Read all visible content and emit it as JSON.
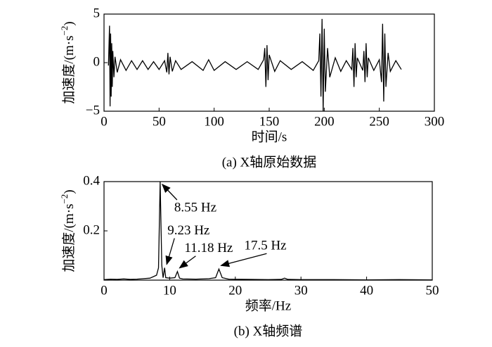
{
  "chart_data": [
    {
      "type": "line",
      "xlabel": "时间/s",
      "ylabel": {
        "text": "加速度/(m·s",
        "sup": "−2",
        "end": ")"
      },
      "caption": "(a) X轴原始数据",
      "xlim": [
        0,
        300
      ],
      "xticks": [
        0,
        50,
        100,
        150,
        200,
        250,
        300
      ],
      "ylim": [
        -5,
        5
      ],
      "yticks": [
        {
          "value": -5,
          "label": "−5"
        },
        0,
        5
      ],
      "series": [
        {
          "color": "#000000",
          "x": [
            4,
            5,
            5.5,
            6,
            6.5,
            7,
            7.5,
            8,
            9,
            10,
            12,
            15,
            20,
            25,
            30,
            35,
            40,
            45,
            50,
            55,
            57,
            58,
            59,
            60,
            62,
            65,
            70,
            80,
            90,
            95,
            100,
            110,
            120,
            130,
            140,
            145,
            146,
            147,
            148,
            149,
            150,
            155,
            160,
            170,
            180,
            190,
            195,
            196,
            197,
            198,
            199,
            200,
            201,
            203,
            205,
            210,
            215,
            220,
            225,
            226,
            227,
            228,
            229,
            230,
            235,
            236,
            237,
            238,
            239,
            240,
            245,
            250,
            252,
            253,
            254,
            255,
            256,
            258,
            260,
            265,
            270
          ],
          "values": [
            -0.3,
            3.8,
            -4.5,
            3.0,
            -3.5,
            2.0,
            -2.5,
            1.2,
            -1.5,
            0.6,
            -1.0,
            0.3,
            -0.8,
            0.2,
            -0.7,
            0.2,
            -0.7,
            0.1,
            -0.7,
            0.2,
            -1.0,
            1.0,
            -1.2,
            0.6,
            -0.9,
            0.2,
            -0.7,
            0.1,
            -0.8,
            0.3,
            -0.8,
            0.1,
            -0.7,
            0.1,
            -0.7,
            0.3,
            1.5,
            -2.5,
            1.8,
            -1.8,
            0.8,
            -0.9,
            0.2,
            -0.7,
            0.1,
            -0.8,
            0.2,
            3.0,
            -3.5,
            4.5,
            -5.0,
            3.5,
            -3.0,
            1.5,
            -1.5,
            0.5,
            -0.9,
            0.2,
            -0.7,
            1.5,
            -2.5,
            2.0,
            -1.5,
            0.5,
            -0.8,
            1.2,
            -2.0,
            2.0,
            -1.5,
            0.5,
            -0.8,
            0.3,
            -2.0,
            4.0,
            -4.0,
            3.0,
            -2.5,
            1.0,
            -0.9,
            0.2,
            -0.7
          ]
        }
      ]
    },
    {
      "type": "line",
      "xlabel": "频率/Hz",
      "ylabel": {
        "text": "加速度/(m·s",
        "sup": "−2",
        "end": ")"
      },
      "caption": "(b) X轴频谱",
      "xlim": [
        0,
        50
      ],
      "xticks": [
        0,
        10,
        20,
        30,
        40,
        50
      ],
      "ylim": [
        0,
        0.4
      ],
      "yticks": [
        0.2,
        0.4
      ],
      "series": [
        {
          "color": "#000000",
          "x": [
            0,
            1,
            2,
            3,
            4,
            5,
            6,
            7,
            8,
            8.3,
            8.55,
            8.8,
            9.0,
            9.23,
            9.4,
            10,
            10.8,
            11.18,
            11.5,
            12,
            14,
            16,
            17,
            17.5,
            18,
            19,
            22,
            25,
            27,
            27.5,
            28,
            30,
            35,
            40,
            45,
            50
          ],
          "values": [
            0.002,
            0.004,
            0.003,
            0.005,
            0.003,
            0.004,
            0.006,
            0.008,
            0.02,
            0.05,
            0.4,
            0.06,
            0.01,
            0.05,
            0.01,
            0.008,
            0.01,
            0.035,
            0.008,
            0.005,
            0.004,
            0.006,
            0.01,
            0.045,
            0.01,
            0.004,
            0.003,
            0.002,
            0.003,
            0.008,
            0.003,
            0.002,
            0.002,
            0.001,
            0.002,
            0.001
          ]
        }
      ],
      "annotations": [
        {
          "text": "8.55 Hz",
          "x": 8.55,
          "y": 0.4
        },
        {
          "text": "9.23 Hz",
          "x": 9.23,
          "y": 0.05
        },
        {
          "text": "11.18 Hz",
          "x": 11.18,
          "y": 0.035
        },
        {
          "text": "17.5 Hz",
          "x": 17.5,
          "y": 0.045
        }
      ]
    }
  ]
}
